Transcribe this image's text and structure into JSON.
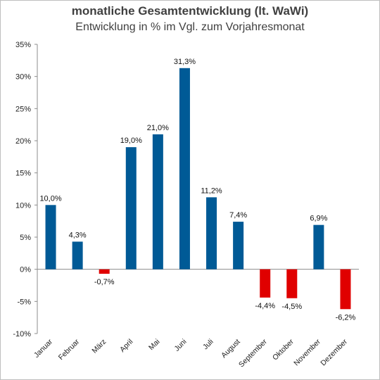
{
  "chart_data": {
    "type": "bar",
    "title": "monatliche Gesamtentwicklung (lt. WaWi)",
    "subtitle": "Entwicklung in % im Vgl. zum Vorjahresmonat",
    "categories": [
      "Januar",
      "Februar",
      "März",
      "April",
      "Mai",
      "Juni",
      "Juli",
      "August",
      "September",
      "Oktober",
      "November",
      "Dezember"
    ],
    "values": [
      10.0,
      4.3,
      -0.7,
      19.0,
      21.0,
      31.3,
      11.2,
      7.4,
      -4.4,
      -4.5,
      6.9,
      -6.2
    ],
    "data_labels": [
      "10,0%",
      "4,3%",
      "-0,7%",
      "19,0%",
      "21,0%",
      "31,3%",
      "11,2%",
      "7,4%",
      "-4,4%",
      "-4,5%",
      "6,9%",
      "-6,2%"
    ],
    "y_ticks": [
      35,
      30,
      25,
      20,
      15,
      10,
      5,
      0,
      -5,
      -10
    ],
    "y_tick_labels": [
      "35%",
      "30%",
      "25%",
      "20%",
      "15%",
      "10%",
      "5%",
      "0%",
      "-5%",
      "-10%"
    ],
    "ylim": [
      -10,
      35
    ],
    "grid": false,
    "legend": "none",
    "colors": {
      "positive": "#005a96",
      "negative": "#e00000"
    }
  }
}
